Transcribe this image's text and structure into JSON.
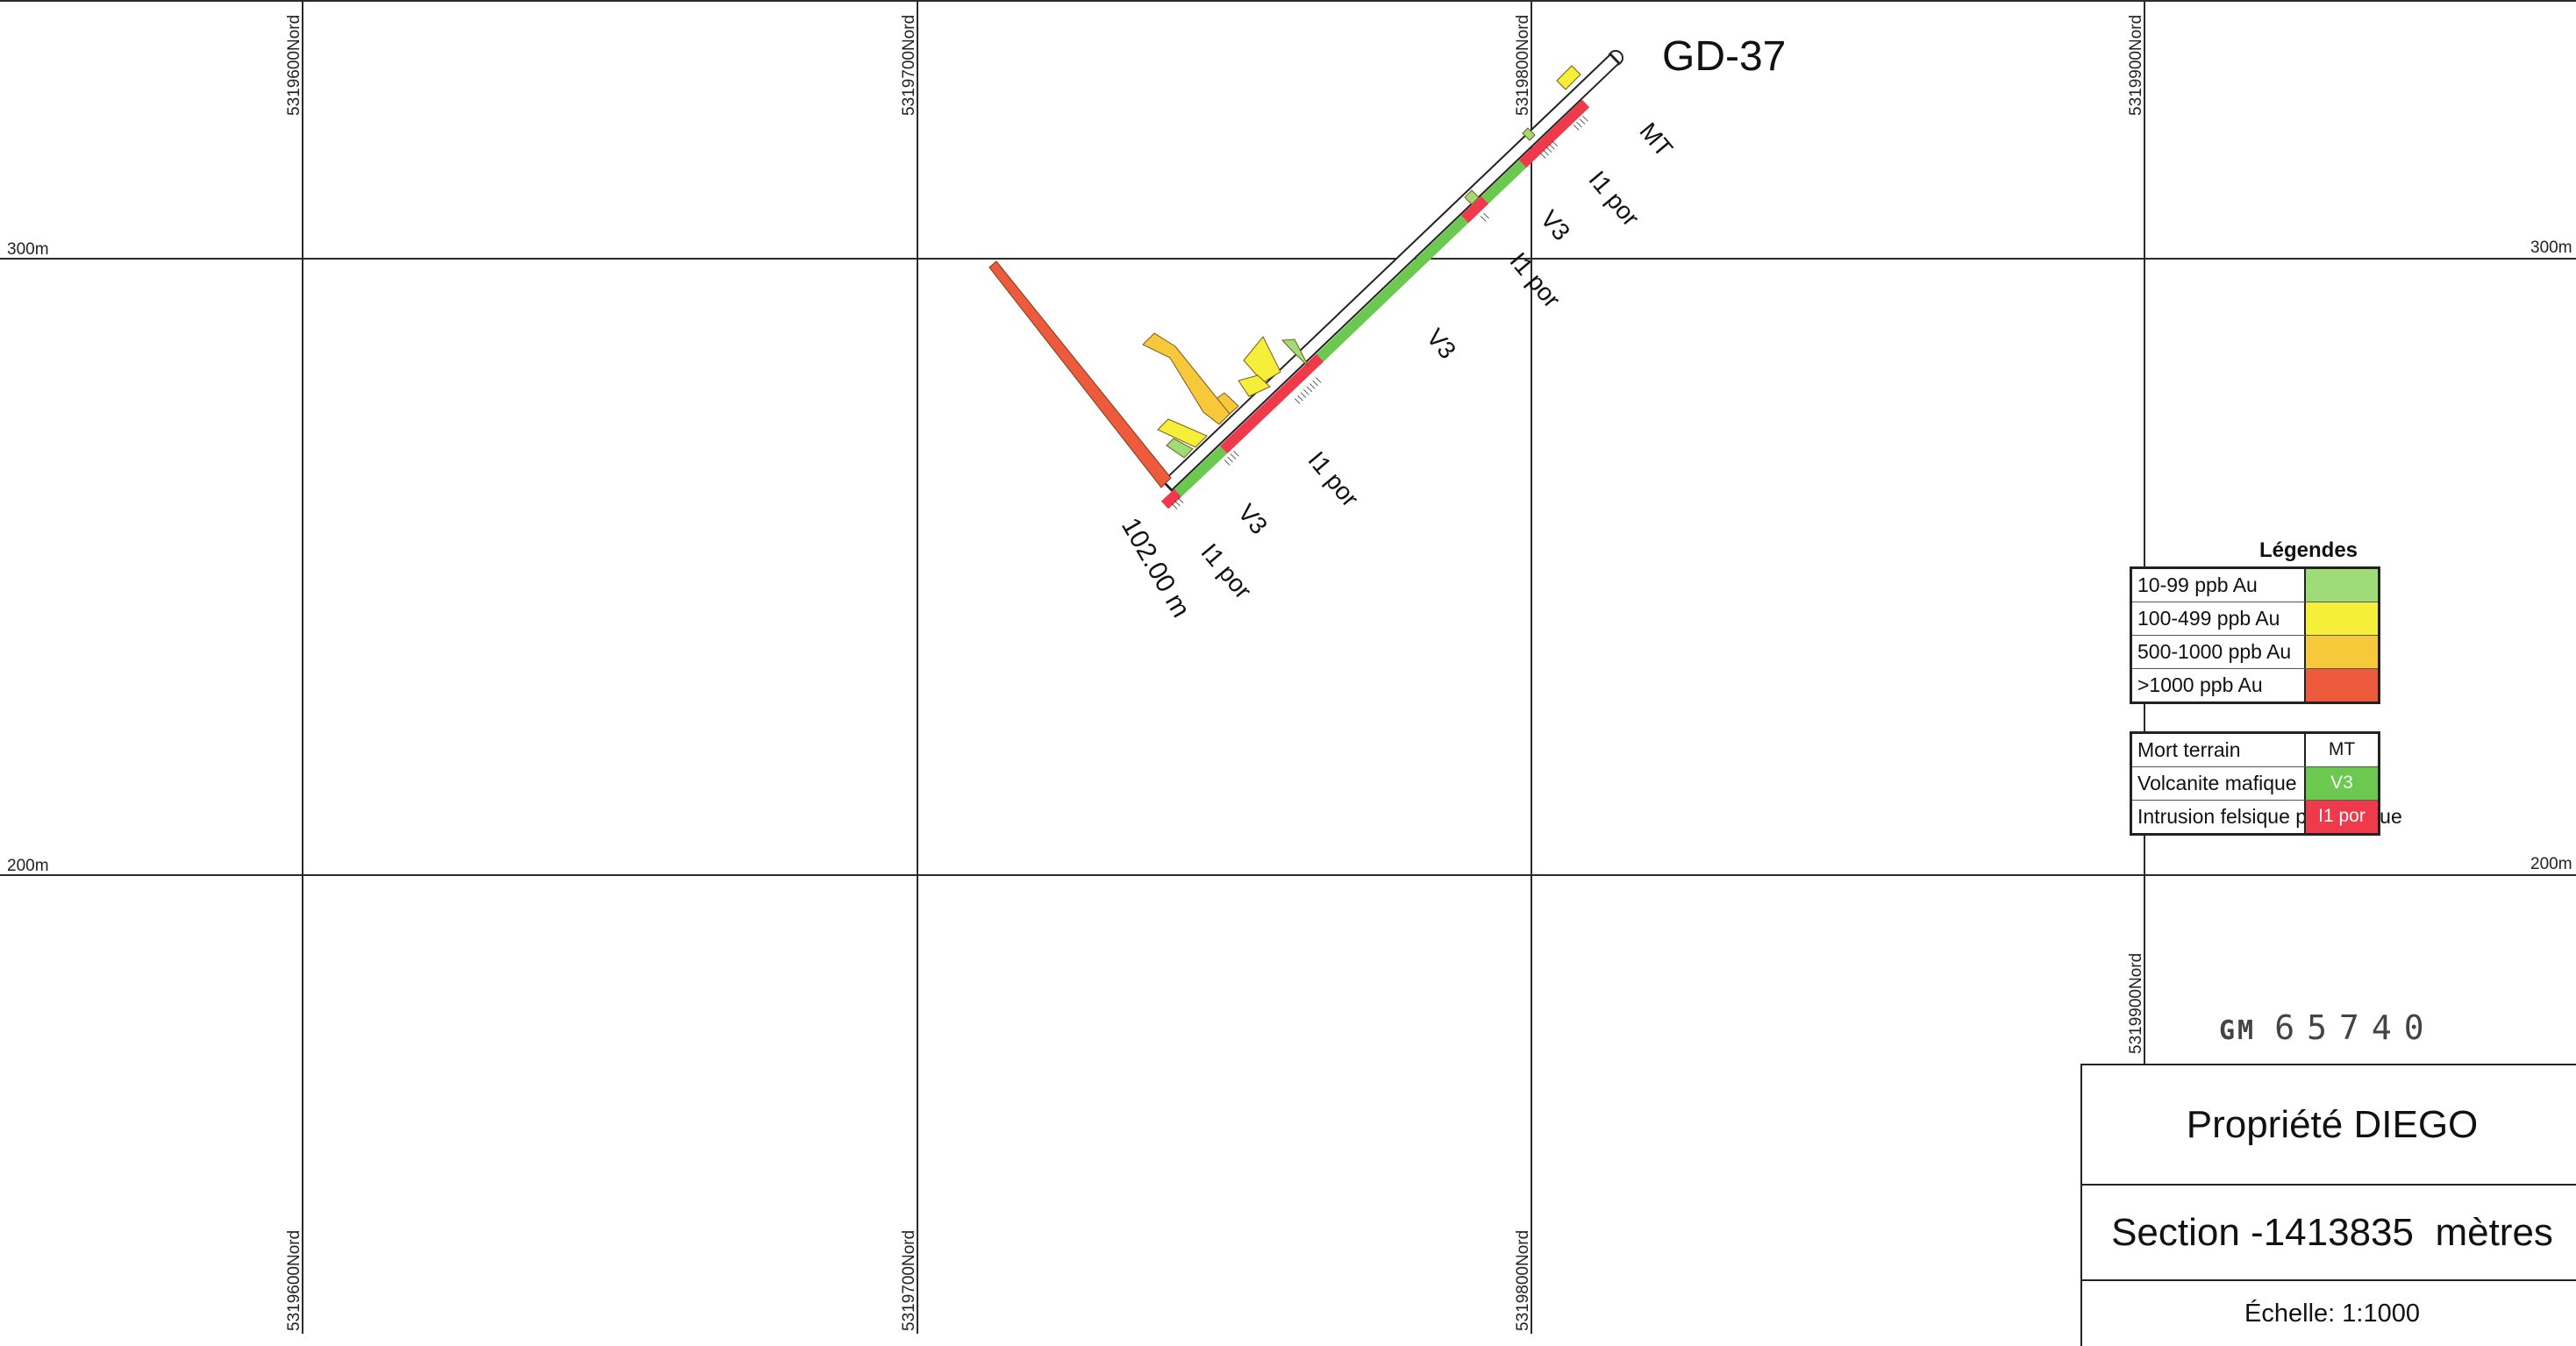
{
  "drillhole": {
    "name": "GD-37",
    "depth_label": "102.00 m",
    "units": {
      "mt": "MT",
      "i1por_1": "I1 por",
      "v3_1": "V3",
      "i1por_2": "I1 por",
      "v3_2": "V3",
      "i1por_3": "I1 por",
      "v3_3": "V3",
      "i1por_4": "I1 por"
    }
  },
  "grid": {
    "northing_labels": [
      "5319600Nord",
      "5319700Nord",
      "5319800Nord",
      "5319900Nord"
    ],
    "elevation_labels": [
      "300m",
      "200m"
    ]
  },
  "legend": {
    "title": "Légendes",
    "assay": [
      {
        "label": "10-99 ppb Au",
        "color": "#9fdc78"
      },
      {
        "label": "100-499 ppb Au",
        "color": "#f5ef3a"
      },
      {
        "label": "500-1000 ppb Au",
        "color": "#f7c93a"
      },
      {
        "label": ">1000 ppb Au",
        "color": "#ee5a3c"
      }
    ],
    "lithology": [
      {
        "label": "Mort terrain",
        "code": "MT",
        "color": "#ffffff"
      },
      {
        "label": "Volcanite mafique",
        "code": "V3",
        "color": "#6cc94f"
      },
      {
        "label": "Intrusion felsique porphyrique",
        "code": "I1 por",
        "color": "#ee3a4a"
      }
    ]
  },
  "stamp": {
    "prefix": "GM",
    "number": "65740"
  },
  "titleblock": {
    "property": "Propriété DIEGO",
    "section": "Section -1413835  mètres",
    "scale": "Échelle: 1:1000"
  },
  "colors": {
    "v3": "#6cc94f",
    "i1por": "#ee3a4a",
    "assay_10_99": "#9fdc78",
    "assay_100_499": "#f5ef3a",
    "assay_500_1000": "#f7c93a",
    "assay_gt_1000": "#ee5a3c"
  }
}
